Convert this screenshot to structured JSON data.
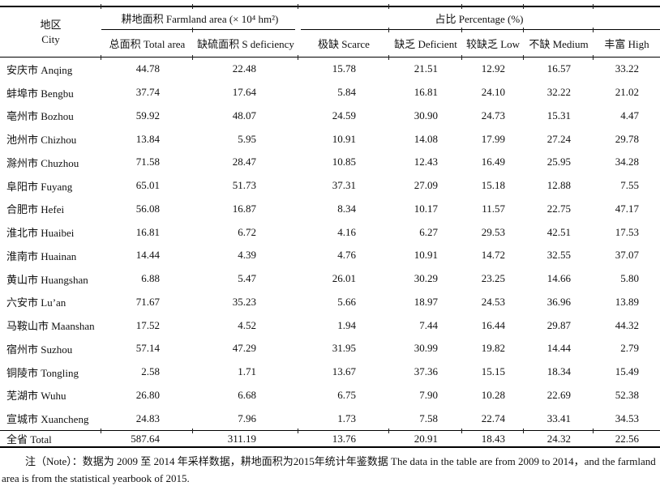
{
  "colors": {
    "background": "#ffffff",
    "text": "#111111",
    "rule_lines": "#000000"
  },
  "table": {
    "header": {
      "city_zh": "地区",
      "city_en": "City",
      "group_farmland": "耕地面积 Farmland area (× 10⁴ hm²)",
      "group_percentage": "占比 Percentage (%)",
      "columns": [
        "总面积 Total area",
        "缺硫面积 S deficiency",
        "极缺 Scarce",
        "缺乏 Deficient",
        "较缺乏 Low",
        "不缺 Medium",
        "丰富 High"
      ]
    },
    "rows": [
      {
        "city": "安庆市 Anqing",
        "values": [
          "44.78",
          "22.48",
          "15.78",
          "21.51",
          "12.92",
          "16.57",
          "33.22"
        ]
      },
      {
        "city": "蚌埠市 Bengbu",
        "values": [
          "37.74",
          "17.64",
          "5.84",
          "16.81",
          "24.10",
          "32.22",
          "21.02"
        ]
      },
      {
        "city": "亳州市 Bozhou",
        "values": [
          "59.92",
          "48.07",
          "24.59",
          "30.90",
          "24.73",
          "15.31",
          "4.47"
        ]
      },
      {
        "city": "池州市 Chizhou",
        "values": [
          "13.84",
          "5.95",
          "10.91",
          "14.08",
          "17.99",
          "27.24",
          "29.78"
        ]
      },
      {
        "city": "滁州市 Chuzhou",
        "values": [
          "71.58",
          "28.47",
          "10.85",
          "12.43",
          "16.49",
          "25.95",
          "34.28"
        ]
      },
      {
        "city": "阜阳市 Fuyang",
        "values": [
          "65.01",
          "51.73",
          "37.31",
          "27.09",
          "15.18",
          "12.88",
          "7.55"
        ]
      },
      {
        "city": "合肥市 Hefei",
        "values": [
          "56.08",
          "16.87",
          "8.34",
          "10.17",
          "11.57",
          "22.75",
          "47.17"
        ]
      },
      {
        "city": "淮北市 Huaibei",
        "values": [
          "16.81",
          "6.72",
          "4.16",
          "6.27",
          "29.53",
          "42.51",
          "17.53"
        ]
      },
      {
        "city": "淮南市 Huainan",
        "values": [
          "14.44",
          "4.39",
          "4.76",
          "10.91",
          "14.72",
          "32.55",
          "37.07"
        ]
      },
      {
        "city": "黄山市 Huangshan",
        "values": [
          "6.88",
          "5.47",
          "26.01",
          "30.29",
          "23.25",
          "14.66",
          "5.80"
        ]
      },
      {
        "city": "六安市 Lu’an",
        "values": [
          "71.67",
          "35.23",
          "5.66",
          "18.97",
          "24.53",
          "36.96",
          "13.89"
        ]
      },
      {
        "city": "马鞍山市 Maanshan",
        "values": [
          "17.52",
          "4.52",
          "1.94",
          "7.44",
          "16.44",
          "29.87",
          "44.32"
        ]
      },
      {
        "city": "宿州市 Suzhou",
        "values": [
          "57.14",
          "47.29",
          "31.95",
          "30.99",
          "19.82",
          "14.44",
          "2.79"
        ]
      },
      {
        "city": "铜陵市 Tongling",
        "values": [
          "2.58",
          "1.71",
          "13.67",
          "37.36",
          "15.15",
          "18.34",
          "15.49"
        ]
      },
      {
        "city": "芜湖市 Wuhu",
        "values": [
          "26.80",
          "6.68",
          "6.75",
          "7.90",
          "10.28",
          "22.69",
          "52.38"
        ]
      },
      {
        "city": "宣城市 Xuancheng",
        "values": [
          "24.83",
          "7.96",
          "1.73",
          "7.58",
          "22.74",
          "33.41",
          "34.53"
        ]
      },
      {
        "city": "全省 Total",
        "values": [
          "587.64",
          "311.19",
          "13.76",
          "20.91",
          "18.43",
          "24.32",
          "22.56"
        ],
        "is_total": true
      }
    ]
  },
  "note": "注（Note）：数据为 2009 至 2014 年采样数据，耕地面积为2015年统计年鉴数据 The data in the table are from 2009 to 2014，and the farmland area is from the statistical yearbook of 2015."
}
